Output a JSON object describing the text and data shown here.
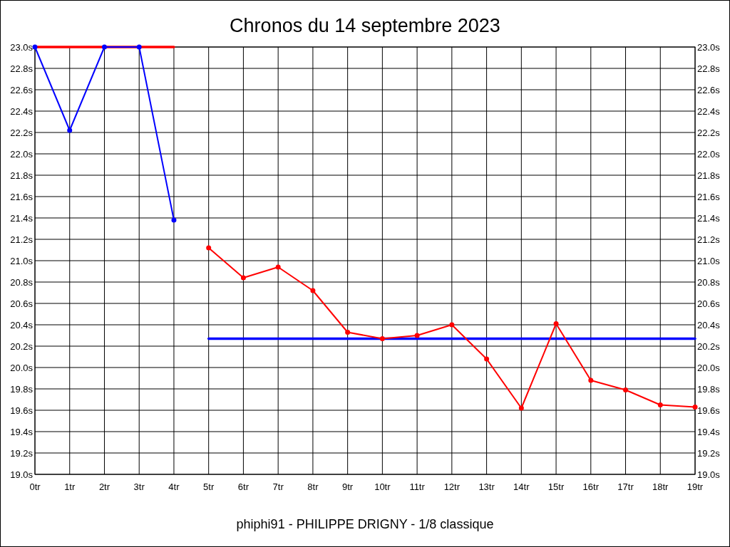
{
  "chart_data": {
    "type": "line",
    "title": "Chronos du 14 septembre 2023",
    "categories": [
      "0tr",
      "1tr",
      "2tr",
      "3tr",
      "4tr",
      "5tr",
      "6tr",
      "7tr",
      "8tr",
      "9tr",
      "10tr",
      "11tr",
      "12tr",
      "13tr",
      "14tr",
      "15tr",
      "16tr",
      "17tr",
      "18tr",
      "19tr"
    ],
    "series": [
      {
        "color": "#ff0000",
        "marker": "none",
        "values": [
          23.0,
          23.0,
          23.0,
          23.0,
          23.0,
          null,
          null,
          null,
          null,
          null,
          null,
          null,
          null,
          null,
          null,
          null,
          null,
          null,
          null,
          null
        ]
      },
      {
        "color": "#0000ff",
        "marker": "none",
        "values": [
          null,
          null,
          null,
          null,
          null,
          20.27,
          20.27,
          20.27,
          20.27,
          20.27,
          20.27,
          20.27,
          20.27,
          20.27,
          20.27,
          20.27,
          20.27,
          20.27,
          20.27,
          20.27
        ]
      },
      {
        "color": "#0000ff",
        "values": [
          23.0,
          22.22,
          23.0,
          23.0,
          21.38,
          null,
          null,
          null,
          null,
          null,
          null,
          null,
          null,
          null,
          null,
          null,
          null,
          null,
          null,
          null
        ]
      },
      {
        "color": "#ff0000",
        "values": [
          null,
          null,
          null,
          null,
          null,
          21.12,
          20.84,
          20.94,
          20.72,
          20.33,
          20.27,
          20.3,
          20.4,
          20.08,
          19.62,
          20.41,
          19.88,
          19.79,
          19.65,
          19.63
        ]
      }
    ],
    "ylim": [
      19.0,
      23.0
    ],
    "yticks": [
      {
        "value": 19.0,
        "label": "19.0s"
      },
      {
        "value": 19.2,
        "label": "19.2s"
      },
      {
        "value": 19.4,
        "label": "19.4s"
      },
      {
        "value": 19.6,
        "label": "19.6s"
      },
      {
        "value": 19.8,
        "label": "19.8s"
      },
      {
        "value": 20.0,
        "label": "20.0s"
      },
      {
        "value": 20.2,
        "label": "20.2s"
      },
      {
        "value": 20.4,
        "label": "20.4s"
      },
      {
        "value": 20.6,
        "label": "20.6s"
      },
      {
        "value": 20.8,
        "label": "20.8s"
      },
      {
        "value": 21.0,
        "label": "21.0s"
      },
      {
        "value": 21.2,
        "label": "21.2s"
      },
      {
        "value": 21.4,
        "label": "21.4s"
      },
      {
        "value": 21.6,
        "label": "21.6s"
      },
      {
        "value": 21.8,
        "label": "21.8s"
      },
      {
        "value": 22.0,
        "label": "22.0s"
      },
      {
        "value": 22.2,
        "label": "22.2s"
      },
      {
        "value": 22.4,
        "label": "22.4s"
      },
      {
        "value": 22.6,
        "label": "22.6s"
      },
      {
        "value": 22.8,
        "label": "22.8s"
      },
      {
        "value": 23.0,
        "label": "23.0s"
      }
    ],
    "y2lim": [
      19.0,
      23.0
    ],
    "y2ticks": [
      {
        "value": 19.0,
        "label": "19.0s"
      },
      {
        "value": 19.2,
        "label": "19.2s"
      },
      {
        "value": 19.4,
        "label": "19.4s"
      },
      {
        "value": 19.6,
        "label": "19.6s"
      },
      {
        "value": 19.8,
        "label": "19.8s"
      },
      {
        "value": 20.0,
        "label": "20.0s"
      },
      {
        "value": 20.2,
        "label": "20.2s"
      },
      {
        "value": 20.4,
        "label": "20.4s"
      },
      {
        "value": 20.6,
        "label": "20.6s"
      },
      {
        "value": 20.8,
        "label": "20.8s"
      },
      {
        "value": 21.0,
        "label": "21.0s"
      },
      {
        "value": 21.2,
        "label": "21.2s"
      },
      {
        "value": 21.4,
        "label": "21.4s"
      },
      {
        "value": 21.6,
        "label": "21.6s"
      },
      {
        "value": 21.8,
        "label": "21.8s"
      },
      {
        "value": 22.0,
        "label": "22.0s"
      },
      {
        "value": 22.2,
        "label": "22.2s"
      },
      {
        "value": 22.4,
        "label": "22.4s"
      },
      {
        "value": 22.6,
        "label": "22.6s"
      },
      {
        "value": 22.8,
        "label": "22.8s"
      },
      {
        "value": 23.0,
        "label": "23.0s"
      }
    ],
    "grid": true,
    "marker": "circle",
    "annotations": [
      "phiphi91 - PHILIPPE DRIGNY - 1/8 classique"
    ]
  }
}
